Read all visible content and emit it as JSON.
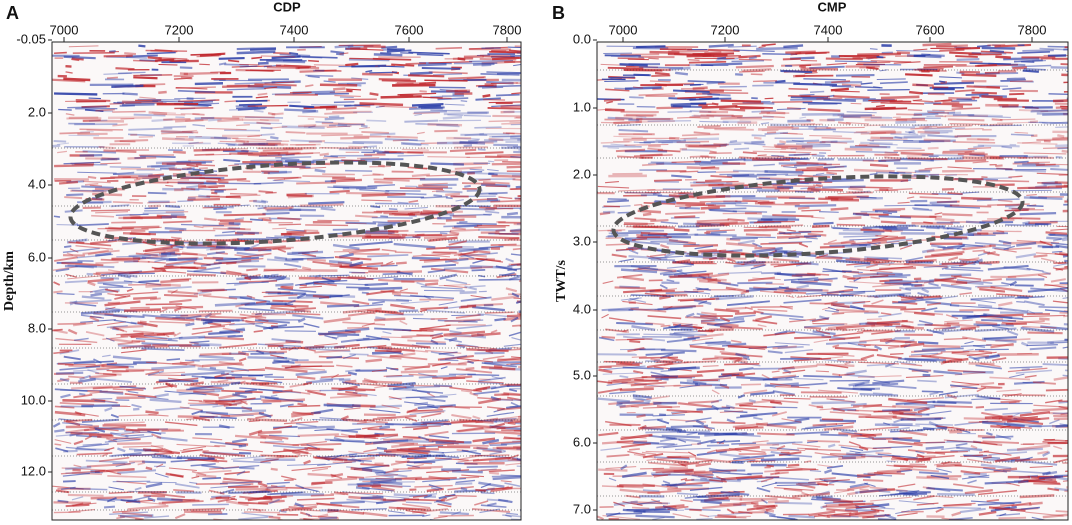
{
  "panels": [
    {
      "label": "A",
      "x_title": "CDP",
      "y_title": "Depth/km",
      "xticks": [
        "7000",
        "7200",
        "7400",
        "7600",
        "7800"
      ],
      "yticks": [
        "-0.05",
        "2.0",
        "4.0",
        "6.0",
        "8.0",
        "10.0",
        "12.0"
      ]
    },
    {
      "label": "B",
      "x_title": "CMP",
      "y_title": "TWT/s",
      "xticks": [
        "7000",
        "7200",
        "7400",
        "7600",
        "7800"
      ],
      "yticks": [
        "0.0",
        "1.0",
        "2.0",
        "3.0",
        "4.0",
        "5.0",
        "6.0",
        "7.0"
      ]
    }
  ]
}
